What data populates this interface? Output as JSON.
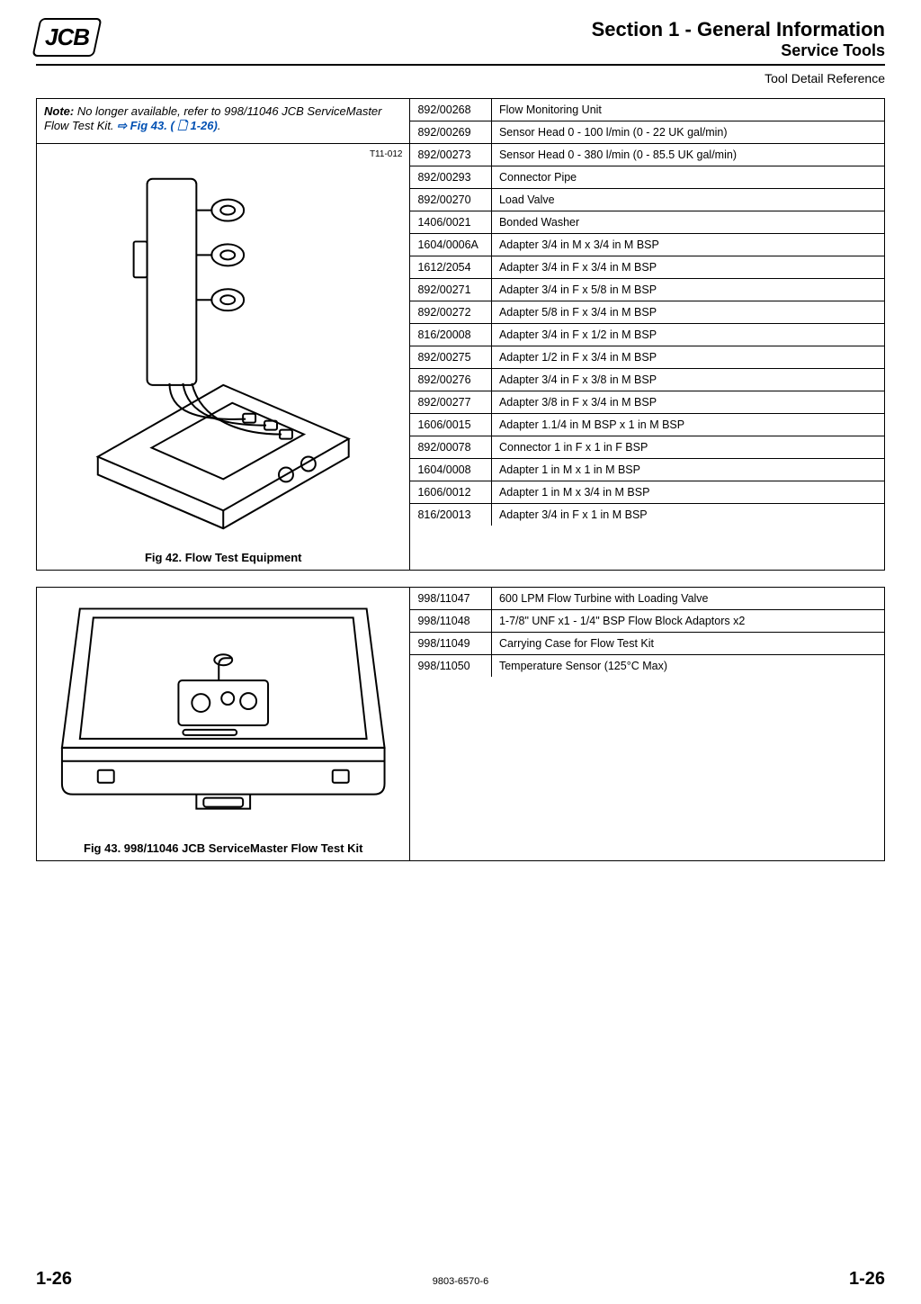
{
  "header": {
    "logo_text": "JCB",
    "section_title": "Section 1 - General Information",
    "sub_title": "Service Tools",
    "tool_ref": "Tool Detail Reference"
  },
  "panel1": {
    "note_prefix": "Note:",
    "note_body": " No longer available, refer to 998/11046 JCB ServiceMaster Flow Test Kit. ",
    "note_link_arrow": "⇨",
    "note_link_text": " Fig 43. ( 🗋 1-26)",
    "note_trail": ".",
    "diagram_tag": "T11-012",
    "fig_caption": "Fig 42. Flow Test Equipment",
    "rows": [
      {
        "pn": "892/00268",
        "desc": "Flow Monitoring Unit"
      },
      {
        "pn": "892/00269",
        "desc": "Sensor Head 0 - 100 l/min (0 - 22 UK gal/min)"
      },
      {
        "pn": "892/00273",
        "desc": "Sensor Head 0 - 380 l/min (0 - 85.5 UK gal/min)"
      },
      {
        "pn": "892/00293",
        "desc": "Connector Pipe"
      },
      {
        "pn": "892/00270",
        "desc": "Load Valve"
      },
      {
        "pn": "1406/0021",
        "desc": "Bonded Washer"
      },
      {
        "pn": "1604/0006A",
        "desc": "Adapter 3/4 in M x 3/4 in M BSP"
      },
      {
        "pn": "1612/2054",
        "desc": "Adapter 3/4 in F x 3/4 in M BSP"
      },
      {
        "pn": "892/00271",
        "desc": "Adapter 3/4 in F x 5/8 in M BSP"
      },
      {
        "pn": "892/00272",
        "desc": "Adapter 5/8 in F x 3/4 in M BSP"
      },
      {
        "pn": "816/20008",
        "desc": "Adapter 3/4 in F x 1/2 in M BSP"
      },
      {
        "pn": "892/00275",
        "desc": "Adapter 1/2 in F x 3/4 in M BSP"
      },
      {
        "pn": "892/00276",
        "desc": "Adapter 3/4 in F x 3/8 in M BSP"
      },
      {
        "pn": "892/00277",
        "desc": "Adapter 3/8 in F x 3/4 in M BSP"
      },
      {
        "pn": "1606/0015",
        "desc": "Adapter 1.1/4 in M BSP x 1 in M BSP"
      },
      {
        "pn": "892/00078",
        "desc": "Connector 1 in F x 1 in F BSP"
      },
      {
        "pn": "1604/0008",
        "desc": "Adapter 1 in M x 1 in M BSP"
      },
      {
        "pn": "1606/0012",
        "desc": "Adapter 1 in M x 3/4 in M BSP"
      },
      {
        "pn": "816/20013",
        "desc": "Adapter 3/4 in F x 1 in M BSP"
      }
    ]
  },
  "panel2": {
    "fig_caption": "Fig 43. 998/11046 JCB ServiceMaster Flow Test Kit",
    "rows": [
      {
        "pn": "998/11047",
        "desc": "600 LPM Flow Turbine with Loading Valve"
      },
      {
        "pn": "998/11048",
        "desc": "1-7/8\" UNF x1 - 1/4\" BSP Flow Block Adaptors x2"
      },
      {
        "pn": "998/11049",
        "desc": "Carrying Case for Flow Test Kit"
      },
      {
        "pn": "998/11050",
        "desc": "Temperature Sensor (125°C Max)"
      }
    ]
  },
  "footer": {
    "page_left": "1-26",
    "doc_num": "9803-6570-6",
    "page_right": "1-26"
  }
}
